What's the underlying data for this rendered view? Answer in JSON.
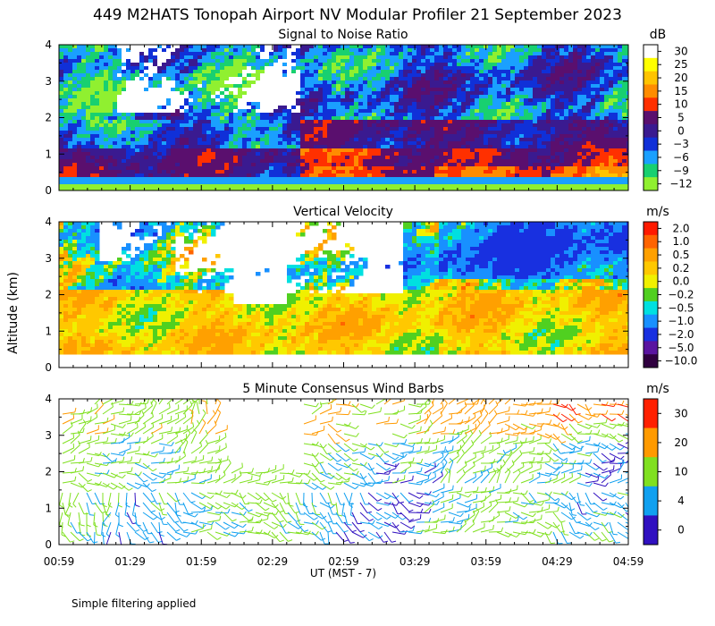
{
  "title": "449 M2HATS Tonopah Airport NV Modular Profiler 21 September 2023",
  "y_axis_label": "Altitude (km)",
  "x_axis_label": "UT  (MST - 7)",
  "footnote": "Simple filtering applied",
  "x_ticks": [
    "00:59",
    "01:29",
    "01:59",
    "02:29",
    "02:59",
    "03:29",
    "03:59",
    "04:29",
    "04:59"
  ],
  "y_ticks": [
    "0",
    "1",
    "2",
    "3",
    "4"
  ],
  "chart_data": [
    {
      "type": "heatmap",
      "title": "Signal to Noise Ratio",
      "units": "dB",
      "x_range": [
        "00:59",
        "04:59"
      ],
      "ylim": [
        0,
        4
      ],
      "ylabel": "Altitude (km)",
      "colorbar": [
        {
          "label": "30",
          "color": "#ffffff"
        },
        {
          "label": "25",
          "color": "#ffff00"
        },
        {
          "label": "20",
          "color": "#ffc400"
        },
        {
          "label": "15",
          "color": "#ff8c00"
        },
        {
          "label": "10",
          "color": "#ff3000"
        },
        {
          "label": "5",
          "color": "#5a0f6e"
        },
        {
          "label": "0",
          "color": "#3a1a90"
        },
        {
          "label": "−3",
          "color": "#1030d8"
        },
        {
          "label": "−6",
          "color": "#1aa0ff"
        },
        {
          "label": "−9",
          "color": "#18d070"
        },
        {
          "label": "−12",
          "color": "#90f030"
        }
      ]
    },
    {
      "type": "heatmap",
      "title": "Vertical Velocity",
      "units": "m/s",
      "x_range": [
        "00:59",
        "04:59"
      ],
      "ylim": [
        0,
        4
      ],
      "ylabel": "Altitude (km)",
      "colorbar": [
        {
          "label": "2.0",
          "color": "#ff1a00"
        },
        {
          "label": "1.0",
          "color": "#ff6400"
        },
        {
          "label": "0.5",
          "color": "#ffa000"
        },
        {
          "label": "0.2",
          "color": "#ffc800"
        },
        {
          "label": "0.0",
          "color": "#f0f000"
        },
        {
          "label": "−0.2",
          "color": "#50d020"
        },
        {
          "label": "−0.5",
          "color": "#00e0e0"
        },
        {
          "label": "−1.0",
          "color": "#1890ff"
        },
        {
          "label": "−2.0",
          "color": "#1830e0"
        },
        {
          "label": "−5.0",
          "color": "#5a14a0"
        },
        {
          "label": "−10.0",
          "color": "#300040"
        }
      ]
    },
    {
      "type": "wind_barbs",
      "title": "5 Minute Consensus Wind Barbs",
      "units": "m/s",
      "x_range": [
        "00:59",
        "04:59"
      ],
      "ylim": [
        0,
        4
      ],
      "ylabel": "Altitude (km)",
      "colorbar": [
        {
          "label": "30",
          "color": "#ff2000"
        },
        {
          "label": "20",
          "color": "#ff9a00"
        },
        {
          "label": "10",
          "color": "#80e020"
        },
        {
          "label": "4",
          "color": "#10a0f0"
        },
        {
          "label": "0",
          "color": "#3010c0"
        }
      ]
    }
  ]
}
